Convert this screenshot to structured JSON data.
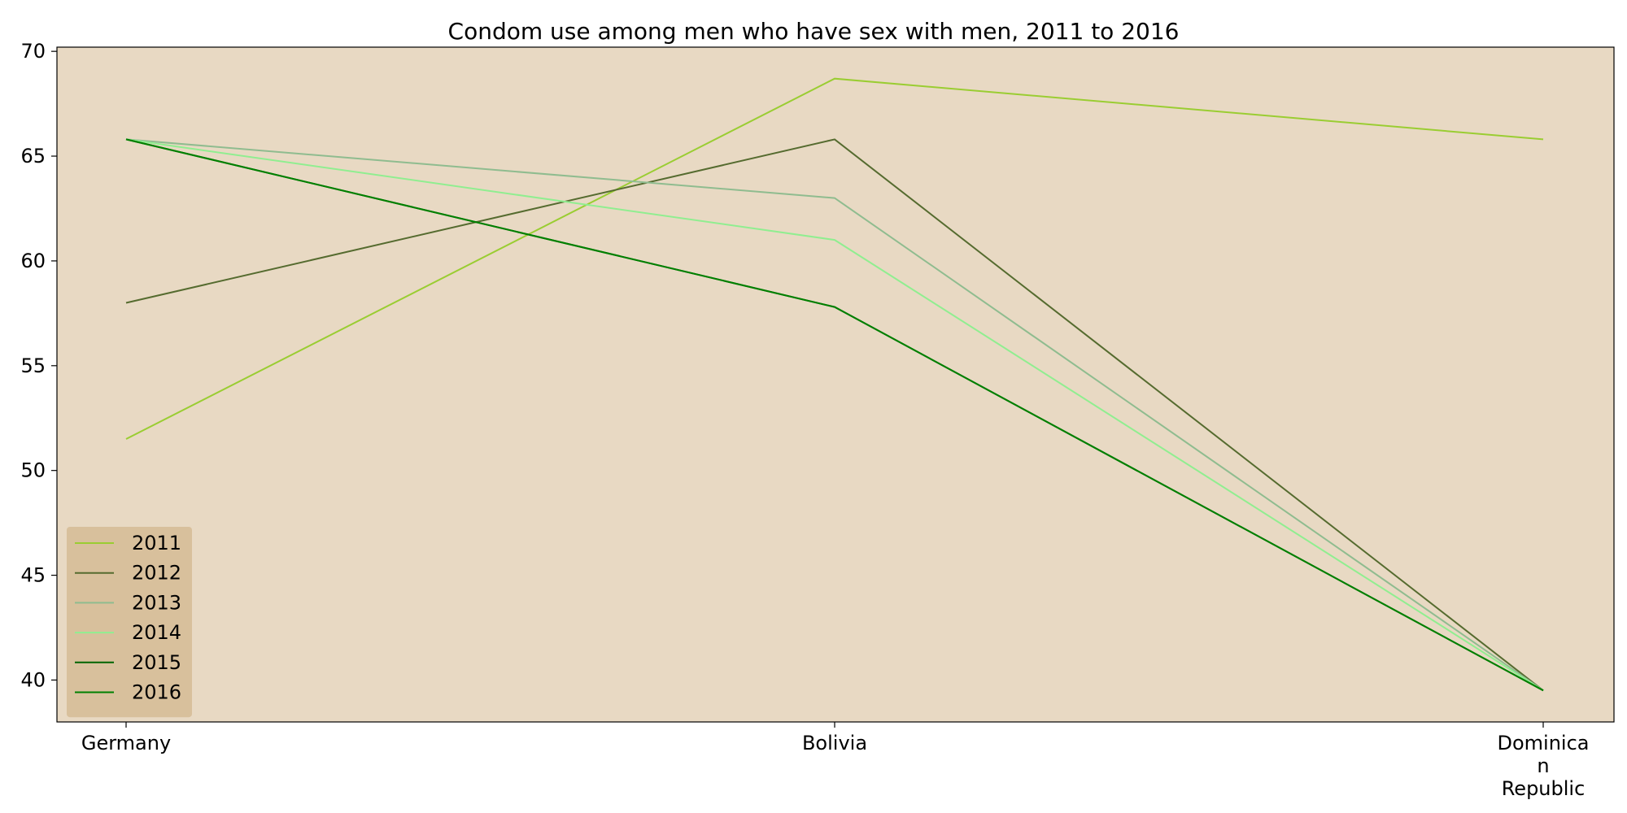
{
  "chart_data": {
    "type": "line",
    "title": "Condom use among men who have sex with men, 2011 to 2016",
    "xlabel": "",
    "ylabel": "",
    "categories": [
      "Germany",
      "Bolivia",
      "Dominican Republic"
    ],
    "category_tick_lines": [
      [
        "Germany"
      ],
      [
        "Bolivia"
      ],
      [
        "Dominica",
        "n",
        "Republic"
      ]
    ],
    "ylim": [
      38,
      70.2
    ],
    "yticks": [
      40,
      45,
      50,
      55,
      60,
      65,
      70
    ],
    "grid": false,
    "legend_position": "lower-left",
    "colors": {
      "plot_background": "#e8d9c3",
      "legend_background": "#d6bd98",
      "axis": "#000000"
    },
    "series": [
      {
        "name": "2011",
        "color": "#9acd32",
        "values": [
          51.5,
          68.7,
          65.8
        ]
      },
      {
        "name": "2012",
        "color": "#556b2f",
        "values": [
          58.0,
          65.8,
          39.5
        ]
      },
      {
        "name": "2013",
        "color": "#8fbc8f",
        "values": [
          65.8,
          63.0,
          39.5
        ]
      },
      {
        "name": "2014",
        "color": "#90ee90",
        "values": [
          65.8,
          61.0,
          39.5
        ]
      },
      {
        "name": "2015",
        "color": "#006400",
        "values": [
          65.8,
          57.8,
          39.5
        ]
      },
      {
        "name": "2016",
        "color": "#008000",
        "values": [
          65.8,
          57.8,
          39.5
        ]
      }
    ]
  }
}
